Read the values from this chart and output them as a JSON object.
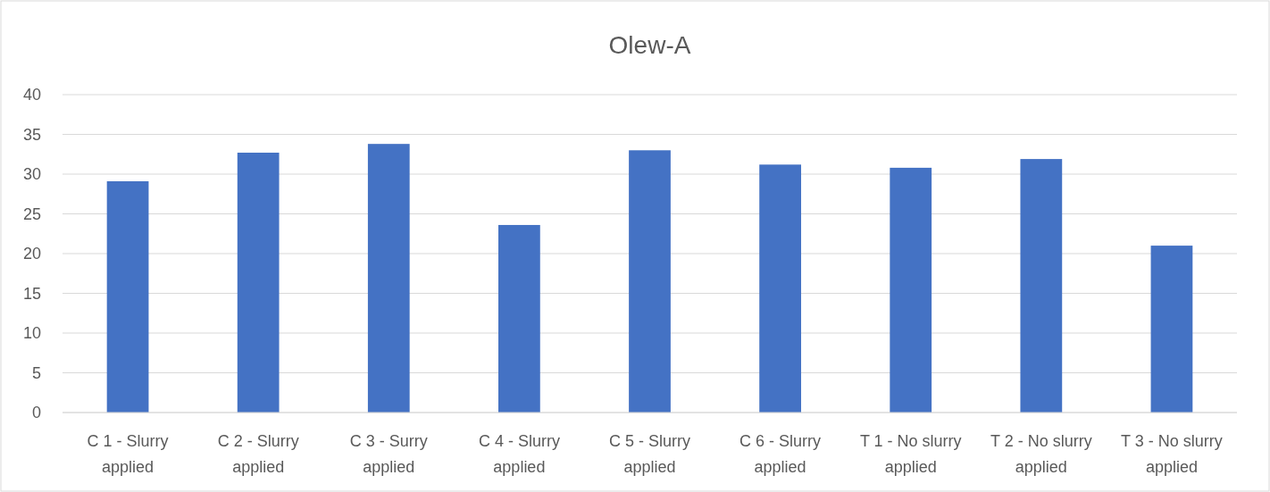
{
  "chart_data": {
    "type": "bar",
    "title": "Olew-A",
    "categories": [
      "C 1 - Slurry applied",
      "C 2 - Slurry applied",
      "C 3 - Surry applied",
      "C 4 - Slurry applied",
      "C 5 - Slurry applied",
      "C 6 - Slurry applied",
      "T 1 - No slurry applied",
      "T 2 - No slurry applied",
      "T 3 - No slurry applied"
    ],
    "values": [
      29.1,
      32.7,
      33.8,
      23.6,
      33.0,
      31.2,
      30.8,
      31.9,
      21.0
    ],
    "color": "#4472c4",
    "ylim": [
      0,
      40
    ],
    "yticks": [
      0,
      5,
      10,
      15,
      20,
      25,
      30,
      35,
      40
    ],
    "grid": "y"
  }
}
